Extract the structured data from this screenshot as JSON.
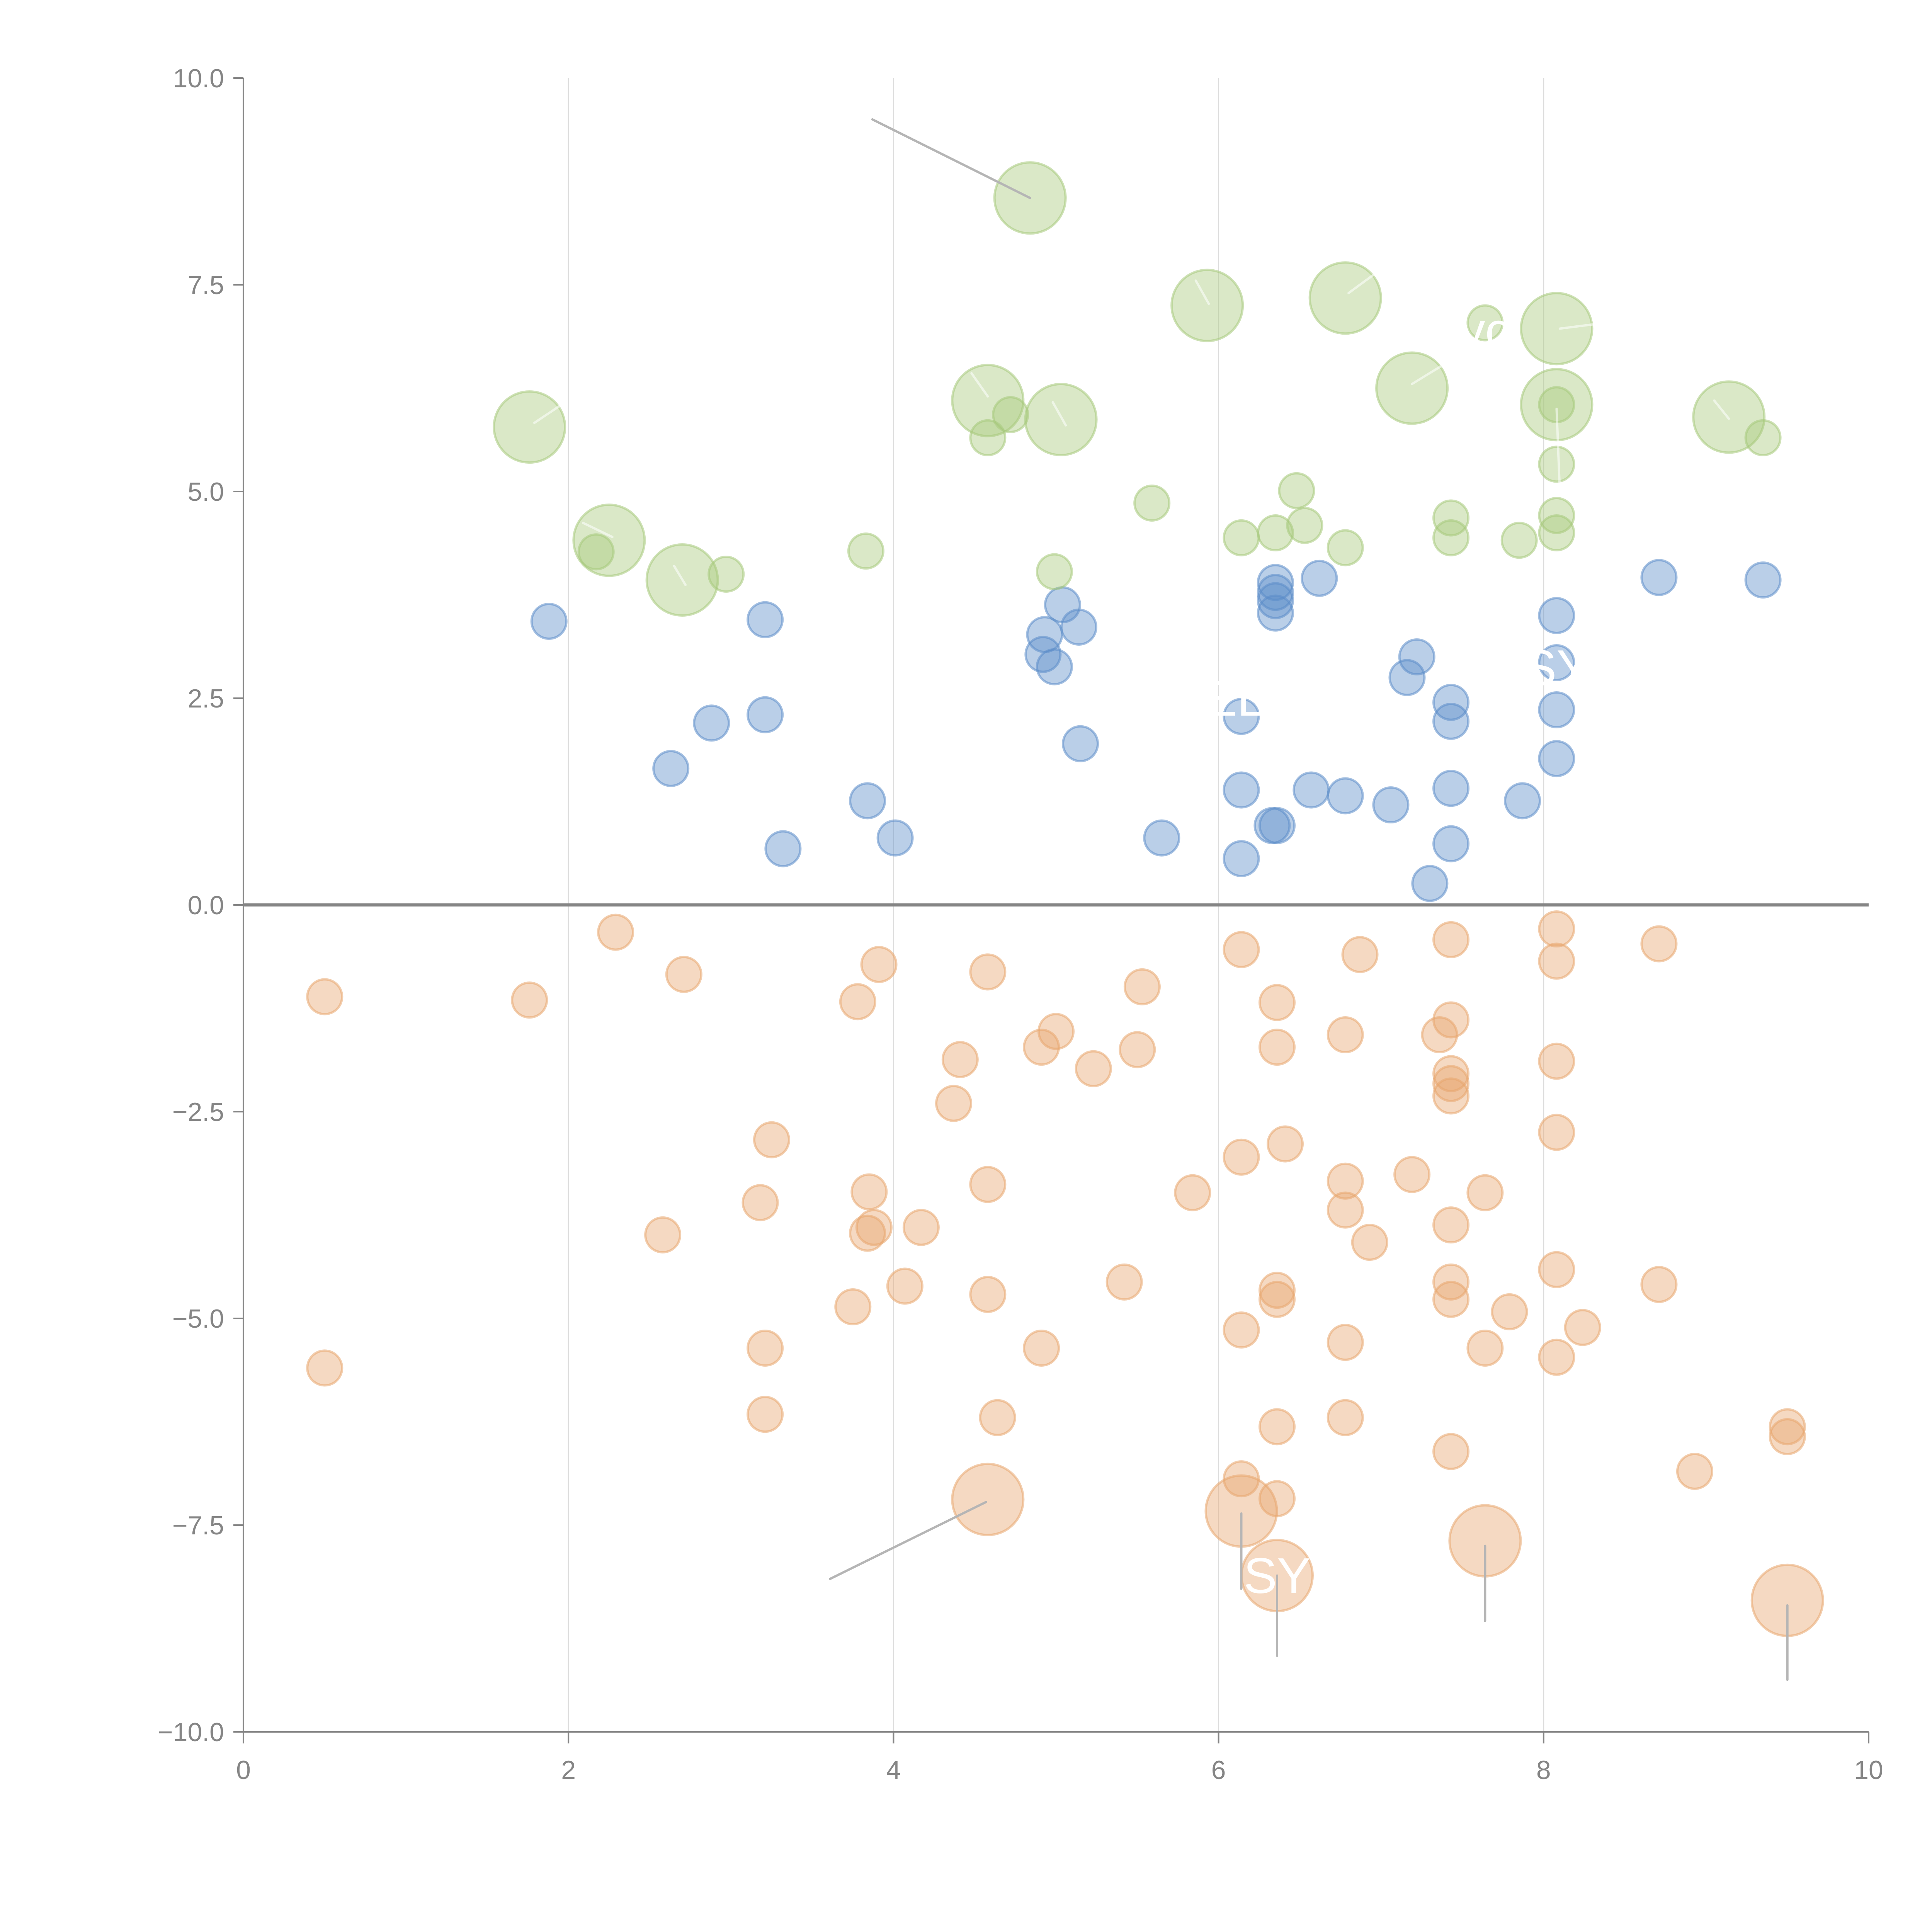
{
  "chart_data": {
    "type": "scatter",
    "title": "",
    "xlabel": "",
    "ylabel": "",
    "xlim": [
      0,
      10
    ],
    "ylim": [
      -10,
      10
    ],
    "x_ticks": [
      "0",
      "2",
      "4",
      "6",
      "8",
      "10"
    ],
    "x_tick_values": [
      0,
      2,
      4,
      6,
      8,
      10
    ],
    "y_ticks": [
      "10.0",
      "7.5",
      "5.0",
      "2.5",
      "0.0",
      "−2.5",
      "−5.0",
      "−7.5",
      "−10.0"
    ],
    "y_tick_values": [
      10,
      7.5,
      5,
      2.5,
      0,
      -2.5,
      -5,
      -7.5,
      -10
    ],
    "grid": "vertical",
    "zero_line": true,
    "legend": "none",
    "series": [
      {
        "name": "blue",
        "color": "#5b8cc8",
        "points": [
          {
            "x": 1.88,
            "y": 3.43,
            "s": 1
          },
          {
            "x": 2.63,
            "y": 1.65,
            "s": 1
          },
          {
            "x": 2.88,
            "y": 2.2,
            "s": 1
          },
          {
            "x": 3.21,
            "y": 3.45,
            "s": 1
          },
          {
            "x": 3.21,
            "y": 2.3,
            "s": 1
          },
          {
            "x": 3.32,
            "y": 0.68,
            "s": 1
          },
          {
            "x": 3.84,
            "y": 1.26,
            "s": 1
          },
          {
            "x": 4.01,
            "y": 0.81,
            "s": 1
          },
          {
            "x": 4.92,
            "y": 3.03,
            "s": 1
          },
          {
            "x": 4.93,
            "y": 3.27,
            "s": 1
          },
          {
            "x": 4.99,
            "y": 2.88,
            "s": 1
          },
          {
            "x": 5.04,
            "y": 3.63,
            "s": 1
          },
          {
            "x": 5.14,
            "y": 3.36,
            "s": 1
          },
          {
            "x": 5.15,
            "y": 1.95,
            "s": 1
          },
          {
            "x": 5.65,
            "y": 0.81,
            "s": 1
          },
          {
            "x": 6.14,
            "y": 2.28,
            "s": 1
          },
          {
            "x": 6.14,
            "y": 1.39,
            "s": 1
          },
          {
            "x": 6.14,
            "y": 0.56,
            "s": 1
          },
          {
            "x": 6.35,
            "y": 3.9,
            "s": 1
          },
          {
            "x": 6.35,
            "y": 3.78,
            "s": 1
          },
          {
            "x": 6.35,
            "y": 3.68,
            "s": 1
          },
          {
            "x": 6.35,
            "y": 3.53,
            "s": 1
          },
          {
            "x": 6.33,
            "y": 0.96,
            "s": 1
          },
          {
            "x": 6.36,
            "y": 0.96,
            "s": 1
          },
          {
            "x": 6.62,
            "y": 3.95,
            "s": 1
          },
          {
            "x": 6.57,
            "y": 1.39,
            "s": 1
          },
          {
            "x": 6.78,
            "y": 1.32,
            "s": 1
          },
          {
            "x": 7.06,
            "y": 1.21,
            "s": 1
          },
          {
            "x": 7.22,
            "y": 3.0,
            "s": 1
          },
          {
            "x": 7.16,
            "y": 2.75,
            "s": 1
          },
          {
            "x": 7.3,
            "y": 0.26,
            "s": 1
          },
          {
            "x": 7.43,
            "y": 2.45,
            "s": 1
          },
          {
            "x": 7.43,
            "y": 2.22,
            "s": 1
          },
          {
            "x": 7.43,
            "y": 1.41,
            "s": 1
          },
          {
            "x": 7.43,
            "y": 0.74,
            "s": 1
          },
          {
            "x": 7.87,
            "y": 1.26,
            "s": 1
          },
          {
            "x": 8.08,
            "y": 3.5,
            "s": 1
          },
          {
            "x": 8.08,
            "y": 2.93,
            "s": 1
          },
          {
            "x": 8.08,
            "y": 2.36,
            "s": 1
          },
          {
            "x": 8.08,
            "y": 1.77,
            "s": 1
          },
          {
            "x": 8.71,
            "y": 3.96,
            "s": 1
          },
          {
            "x": 9.35,
            "y": 3.93,
            "s": 1
          }
        ]
      },
      {
        "name": "green",
        "color": "#a6c97a",
        "points": [
          {
            "x": 1.76,
            "y": 5.78,
            "s": 2
          },
          {
            "x": 2.25,
            "y": 4.41,
            "s": 2
          },
          {
            "x": 2.17,
            "y": 4.27,
            "s": 1
          },
          {
            "x": 2.7,
            "y": 3.93,
            "s": 2
          },
          {
            "x": 2.97,
            "y": 4.0,
            "s": 1
          },
          {
            "x": 3.83,
            "y": 4.28,
            "s": 1
          },
          {
            "x": 4.84,
            "y": 8.55,
            "s": 2
          },
          {
            "x": 4.58,
            "y": 6.1,
            "s": 2
          },
          {
            "x": 4.72,
            "y": 5.93,
            "s": 1
          },
          {
            "x": 4.58,
            "y": 5.65,
            "s": 1
          },
          {
            "x": 5.03,
            "y": 5.87,
            "s": 2
          },
          {
            "x": 4.99,
            "y": 4.03,
            "s": 1
          },
          {
            "x": 5.59,
            "y": 4.86,
            "s": 1
          },
          {
            "x": 5.93,
            "y": 7.25,
            "s": 2
          },
          {
            "x": 6.14,
            "y": 4.44,
            "s": 1
          },
          {
            "x": 6.35,
            "y": 4.5,
            "s": 1
          },
          {
            "x": 6.48,
            "y": 5.01,
            "s": 1
          },
          {
            "x": 6.53,
            "y": 4.59,
            "s": 1
          },
          {
            "x": 6.78,
            "y": 7.34,
            "s": 2
          },
          {
            "x": 6.78,
            "y": 4.32,
            "s": 1
          },
          {
            "x": 7.19,
            "y": 6.25,
            "s": 2
          },
          {
            "x": 7.43,
            "y": 4.68,
            "s": 1
          },
          {
            "x": 7.43,
            "y": 4.44,
            "s": 1
          },
          {
            "x": 7.64,
            "y": 7.04,
            "s": 1
          },
          {
            "x": 7.85,
            "y": 4.41,
            "s": 1
          },
          {
            "x": 8.08,
            "y": 6.97,
            "s": 2
          },
          {
            "x": 8.08,
            "y": 6.05,
            "s": 2
          },
          {
            "x": 8.08,
            "y": 6.05,
            "s": 1
          },
          {
            "x": 8.08,
            "y": 5.33,
            "s": 1
          },
          {
            "x": 8.08,
            "y": 4.71,
            "s": 1
          },
          {
            "x": 8.08,
            "y": 4.5,
            "s": 1
          },
          {
            "x": 9.14,
            "y": 5.9,
            "s": 2
          },
          {
            "x": 9.35,
            "y": 5.65,
            "s": 1
          }
        ]
      },
      {
        "name": "orange",
        "color": "#e8a56e",
        "points": [
          {
            "x": 0.5,
            "y": -1.11,
            "s": 1
          },
          {
            "x": 0.5,
            "y": -5.6,
            "s": 1
          },
          {
            "x": 1.76,
            "y": -1.15,
            "s": 1
          },
          {
            "x": 2.29,
            "y": -0.33,
            "s": 1
          },
          {
            "x": 2.71,
            "y": -0.84,
            "s": 1
          },
          {
            "x": 2.58,
            "y": -3.99,
            "s": 1
          },
          {
            "x": 3.18,
            "y": -3.6,
            "s": 1
          },
          {
            "x": 3.25,
            "y": -2.84,
            "s": 1
          },
          {
            "x": 3.21,
            "y": -5.36,
            "s": 1
          },
          {
            "x": 3.21,
            "y": -6.16,
            "s": 1
          },
          {
            "x": 3.78,
            "y": -1.17,
            "s": 1
          },
          {
            "x": 3.91,
            "y": -0.72,
            "s": 1
          },
          {
            "x": 3.85,
            "y": -3.47,
            "s": 1
          },
          {
            "x": 3.88,
            "y": -3.9,
            "s": 1
          },
          {
            "x": 3.84,
            "y": -3.97,
            "s": 1
          },
          {
            "x": 4.17,
            "y": -3.9,
            "s": 1
          },
          {
            "x": 3.75,
            "y": -4.86,
            "s": 1
          },
          {
            "x": 4.07,
            "y": -4.61,
            "s": 1
          },
          {
            "x": 4.58,
            "y": -0.81,
            "s": 1
          },
          {
            "x": 4.41,
            "y": -1.87,
            "s": 1
          },
          {
            "x": 4.37,
            "y": -2.4,
            "s": 1
          },
          {
            "x": 4.58,
            "y": -3.38,
            "s": 1
          },
          {
            "x": 4.58,
            "y": -4.71,
            "s": 1
          },
          {
            "x": 4.64,
            "y": -6.2,
            "s": 1
          },
          {
            "x": 4.58,
            "y": -7.19,
            "s": 2
          },
          {
            "x": 5.0,
            "y": -1.53,
            "s": 1
          },
          {
            "x": 4.91,
            "y": -1.72,
            "s": 1
          },
          {
            "x": 5.23,
            "y": -1.98,
            "s": 1
          },
          {
            "x": 4.91,
            "y": -5.36,
            "s": 1
          },
          {
            "x": 5.53,
            "y": -0.99,
            "s": 1
          },
          {
            "x": 5.5,
            "y": -1.75,
            "s": 1
          },
          {
            "x": 5.42,
            "y": -4.56,
            "s": 1
          },
          {
            "x": 5.84,
            "y": -3.48,
            "s": 1
          },
          {
            "x": 6.14,
            "y": -0.54,
            "s": 1
          },
          {
            "x": 6.14,
            "y": -3.05,
            "s": 1
          },
          {
            "x": 6.14,
            "y": -5.14,
            "s": 1
          },
          {
            "x": 6.14,
            "y": -6.94,
            "s": 1
          },
          {
            "x": 6.14,
            "y": -7.33,
            "s": 2
          },
          {
            "x": 6.36,
            "y": -1.18,
            "s": 1
          },
          {
            "x": 6.36,
            "y": -1.72,
            "s": 1
          },
          {
            "x": 6.41,
            "y": -2.89,
            "s": 1
          },
          {
            "x": 6.36,
            "y": -4.66,
            "s": 1
          },
          {
            "x": 6.36,
            "y": -4.77,
            "s": 1
          },
          {
            "x": 6.36,
            "y": -6.31,
            "s": 1
          },
          {
            "x": 6.36,
            "y": -7.18,
            "s": 1
          },
          {
            "x": 6.36,
            "y": -8.11,
            "s": 2
          },
          {
            "x": 6.87,
            "y": -0.6,
            "s": 1
          },
          {
            "x": 6.78,
            "y": -1.57,
            "s": 1
          },
          {
            "x": 6.78,
            "y": -3.34,
            "s": 1
          },
          {
            "x": 6.78,
            "y": -3.69,
            "s": 1
          },
          {
            "x": 6.93,
            "y": -4.08,
            "s": 1
          },
          {
            "x": 6.78,
            "y": -5.29,
            "s": 1
          },
          {
            "x": 6.78,
            "y": -6.2,
            "s": 1
          },
          {
            "x": 7.19,
            "y": -3.26,
            "s": 1
          },
          {
            "x": 7.43,
            "y": -0.42,
            "s": 1
          },
          {
            "x": 7.43,
            "y": -1.39,
            "s": 1
          },
          {
            "x": 7.36,
            "y": -1.57,
            "s": 1
          },
          {
            "x": 7.43,
            "y": -2.04,
            "s": 1
          },
          {
            "x": 7.43,
            "y": -2.16,
            "s": 1
          },
          {
            "x": 7.43,
            "y": -2.31,
            "s": 1
          },
          {
            "x": 7.43,
            "y": -3.87,
            "s": 1
          },
          {
            "x": 7.43,
            "y": -4.56,
            "s": 1
          },
          {
            "x": 7.43,
            "y": -4.77,
            "s": 1
          },
          {
            "x": 7.43,
            "y": -6.61,
            "s": 1
          },
          {
            "x": 7.64,
            "y": -3.48,
            "s": 1
          },
          {
            "x": 7.64,
            "y": -5.36,
            "s": 1
          },
          {
            "x": 7.64,
            "y": -7.69,
            "s": 2
          },
          {
            "x": 7.79,
            "y": -4.92,
            "s": 1
          },
          {
            "x": 8.08,
            "y": -0.29,
            "s": 1
          },
          {
            "x": 8.08,
            "y": -0.68,
            "s": 1
          },
          {
            "x": 8.08,
            "y": -1.89,
            "s": 1
          },
          {
            "x": 8.08,
            "y": -2.75,
            "s": 1
          },
          {
            "x": 8.08,
            "y": -4.41,
            "s": 1
          },
          {
            "x": 8.08,
            "y": -5.47,
            "s": 1
          },
          {
            "x": 8.24,
            "y": -5.11,
            "s": 1
          },
          {
            "x": 8.71,
            "y": -0.47,
            "s": 1
          },
          {
            "x": 8.71,
            "y": -4.59,
            "s": 1
          },
          {
            "x": 8.93,
            "y": -6.85,
            "s": 1
          },
          {
            "x": 9.5,
            "y": -6.31,
            "s": 1
          },
          {
            "x": 9.5,
            "y": -6.43,
            "s": 1
          },
          {
            "x": 9.5,
            "y": -8.41,
            "s": 2
          }
        ]
      }
    ],
    "annotations": [
      {
        "text": "SY",
        "x": 6.36,
        "y": -8.11,
        "color": "#ffffff"
      },
      {
        "text": "yc",
        "x": 7.64,
        "y": 6.95,
        "color": "#ffffff"
      },
      {
        "text": "ELI",
        "x": 6.14,
        "y": 2.5,
        "color": "#ffffff"
      },
      {
        "text": "SY",
        "x": 8.08,
        "y": 2.87,
        "color": "#ffffff"
      }
    ],
    "leaders": [
      {
        "from": [
          3.87,
          9.5
        ],
        "to": [
          4.84,
          8.55
        ],
        "tone": "gray"
      },
      {
        "from": [
          3.61,
          -8.15
        ],
        "to": [
          4.57,
          -7.22
        ],
        "tone": "gray"
      },
      {
        "from": [
          6.14,
          -7.36
        ],
        "to": [
          6.14,
          -8.27
        ],
        "tone": "gray"
      },
      {
        "from": [
          6.36,
          -8.11
        ],
        "to": [
          6.36,
          -9.08
        ],
        "tone": "gray"
      },
      {
        "from": [
          7.64,
          -7.75
        ],
        "to": [
          7.64,
          -8.66
        ],
        "tone": "gray"
      },
      {
        "from": [
          9.5,
          -8.47
        ],
        "to": [
          9.5,
          -9.37
        ],
        "tone": "gray"
      },
      {
        "from": [
          1.79,
          5.83
        ],
        "to": [
          1.98,
          6.08
        ],
        "tone": "light"
      },
      {
        "from": [
          2.27,
          4.45
        ],
        "to": [
          2.09,
          4.62
        ],
        "tone": "light"
      },
      {
        "from": [
          2.72,
          3.87
        ],
        "to": [
          2.65,
          4.1
        ],
        "tone": "light"
      },
      {
        "from": [
          4.58,
          6.15
        ],
        "to": [
          4.48,
          6.43
        ],
        "tone": "light"
      },
      {
        "from": [
          5.06,
          5.8
        ],
        "to": [
          4.98,
          6.08
        ],
        "tone": "light"
      },
      {
        "from": [
          5.94,
          7.27
        ],
        "to": [
          5.86,
          7.55
        ],
        "tone": "light"
      },
      {
        "from": [
          6.8,
          7.4
        ],
        "to": [
          6.96,
          7.63
        ],
        "tone": "light"
      },
      {
        "from": [
          7.19,
          6.3
        ],
        "to": [
          7.44,
          6.6
        ],
        "tone": "light"
      },
      {
        "from": [
          8.1,
          6.97
        ],
        "to": [
          8.3,
          7.02
        ],
        "tone": "light"
      },
      {
        "from": [
          8.08,
          6.0
        ],
        "to": [
          8.1,
          5.0
        ],
        "tone": "light"
      },
      {
        "from": [
          9.14,
          5.88
        ],
        "to": [
          9.05,
          6.1
        ],
        "tone": "light"
      }
    ]
  }
}
